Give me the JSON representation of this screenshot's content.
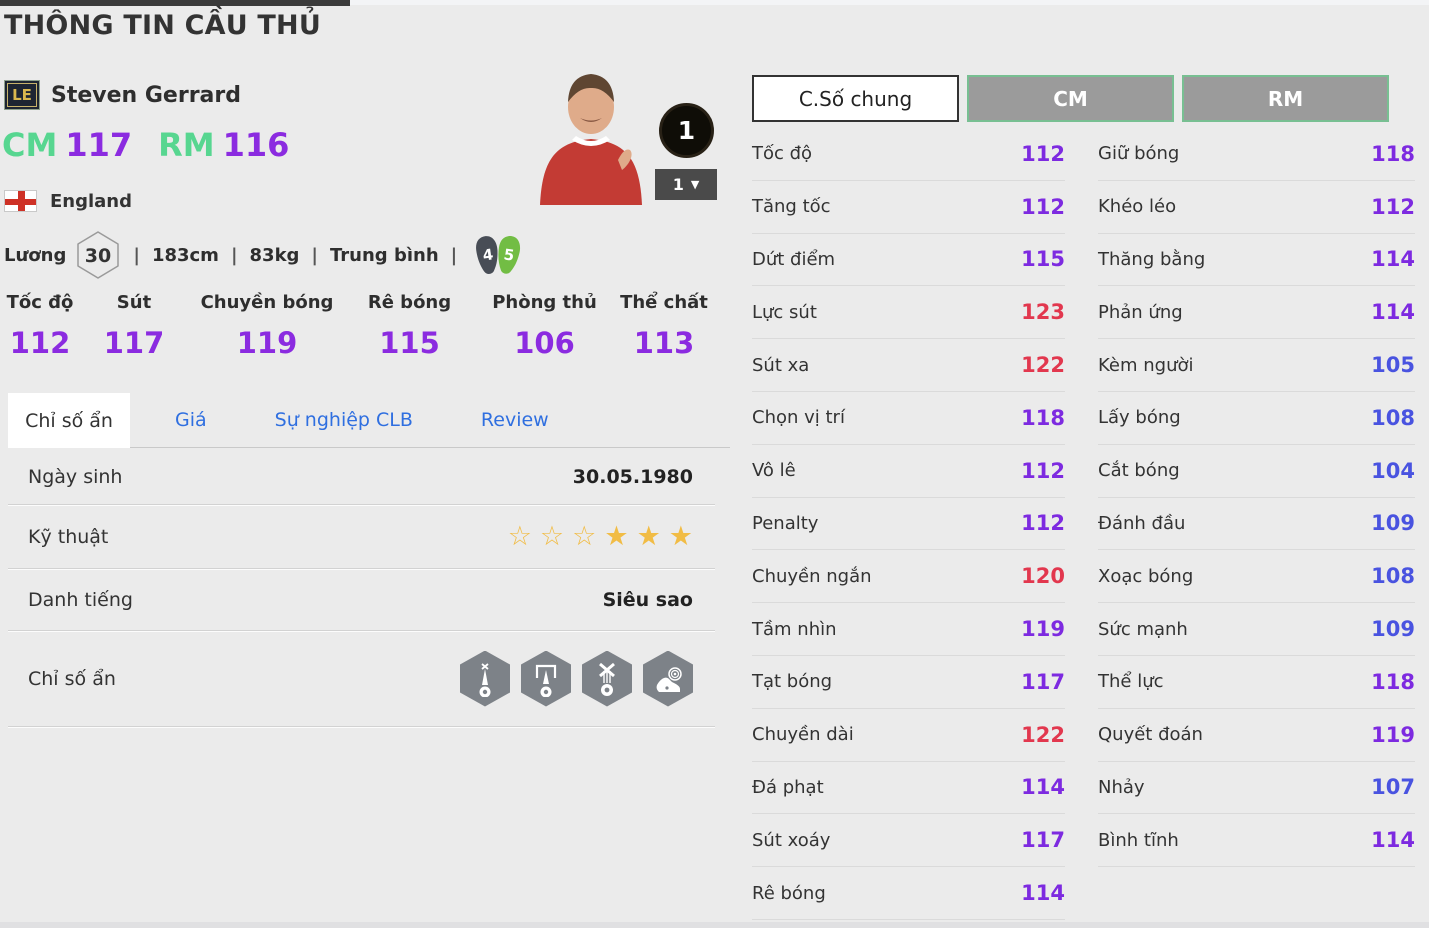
{
  "page": {
    "title": "THÔNG TIN CẦU THỦ"
  },
  "player": {
    "card_badge": "LE",
    "name": "Steven Gerrard",
    "positions": [
      {
        "pos": "CM",
        "rating": "117"
      },
      {
        "pos": "RM",
        "rating": "116"
      }
    ],
    "nation": "England",
    "salary_label": "Lương",
    "salary": "30",
    "height": "183cm",
    "weight": "83kg",
    "body_type": "Trung bình",
    "weak_foot": "4",
    "strong_foot": "5",
    "level_badge": "1",
    "level_selected": "1"
  },
  "summary_stats": [
    {
      "label": "Tốc độ",
      "value": "112"
    },
    {
      "label": "Sút",
      "value": "117"
    },
    {
      "label": "Chuyền bóng",
      "value": "119"
    },
    {
      "label": "Rê bóng",
      "value": "115"
    },
    {
      "label": "Phòng thủ",
      "value": "106"
    },
    {
      "label": "Thể chất",
      "value": "113"
    }
  ],
  "tabs": [
    {
      "label": "Chỉ số ẩn",
      "active": true
    },
    {
      "label": "Giá",
      "active": false
    },
    {
      "label": "Sự nghiệp CLB",
      "active": false
    },
    {
      "label": "Review",
      "active": false
    }
  ],
  "info_rows": {
    "birth": {
      "label": "Ngày sinh",
      "value": "30.05.1980"
    },
    "skill": {
      "label": "Kỹ thuật",
      "stars_total": 6,
      "stars_filled": 3
    },
    "fame": {
      "label": "Danh tiếng",
      "value": "Siêu sao"
    },
    "hidden": {
      "label": "Chỉ số ẩn",
      "badges": [
        "corner-arrow-ball",
        "goal-arrow-ball",
        "medal-ball",
        "boot-target"
      ]
    }
  },
  "right_panel": {
    "buttons": [
      {
        "label": "C.Số chung",
        "style": "general"
      },
      {
        "label": "CM",
        "style": "pos"
      },
      {
        "label": "RM",
        "style": "pos"
      }
    ],
    "columns": [
      [
        {
          "label": "Tốc độ",
          "value": 112
        },
        {
          "label": "Tăng tốc",
          "value": 112
        },
        {
          "label": "Dứt điểm",
          "value": 115
        },
        {
          "label": "Lực sút",
          "value": 123
        },
        {
          "label": "Sút xa",
          "value": 122
        },
        {
          "label": "Chọn vị trí",
          "value": 118
        },
        {
          "label": "Vô lê",
          "value": 112
        },
        {
          "label": "Penalty",
          "value": 112
        },
        {
          "label": "Chuyền ngắn",
          "value": 120
        },
        {
          "label": "Tầm nhìn",
          "value": 119
        },
        {
          "label": "Tạt bóng",
          "value": 117
        },
        {
          "label": "Chuyền dài",
          "value": 122
        },
        {
          "label": "Đá phạt",
          "value": 114
        },
        {
          "label": "Sút xoáy",
          "value": 117
        },
        {
          "label": "Rê bóng",
          "value": 114
        }
      ],
      [
        {
          "label": "Giữ bóng",
          "value": 118
        },
        {
          "label": "Khéo léo",
          "value": 112
        },
        {
          "label": "Thăng bằng",
          "value": 114
        },
        {
          "label": "Phản ứng",
          "value": 114
        },
        {
          "label": "Kèm người",
          "value": 105
        },
        {
          "label": "Lấy bóng",
          "value": 108
        },
        {
          "label": "Cắt bóng",
          "value": 104
        },
        {
          "label": "Đánh đầu",
          "value": 109
        },
        {
          "label": "Xoạc bóng",
          "value": 108
        },
        {
          "label": "Sức mạnh",
          "value": 109
        },
        {
          "label": "Thể lực",
          "value": 118
        },
        {
          "label": "Quyết đoán",
          "value": 119
        },
        {
          "label": "Nhảy",
          "value": 107
        },
        {
          "label": "Bình tĩnh",
          "value": 114
        }
      ]
    ]
  },
  "colors": {
    "accent_green": "#57d690",
    "value_purple": "#7d2ae0",
    "value_red": "#e2374e",
    "value_blue": "#4953e0",
    "tab_blue": "#2f6fe0",
    "star_gold": "#f1bc45",
    "badge_gold": "#d9b84e",
    "background": "#ebebeb"
  }
}
